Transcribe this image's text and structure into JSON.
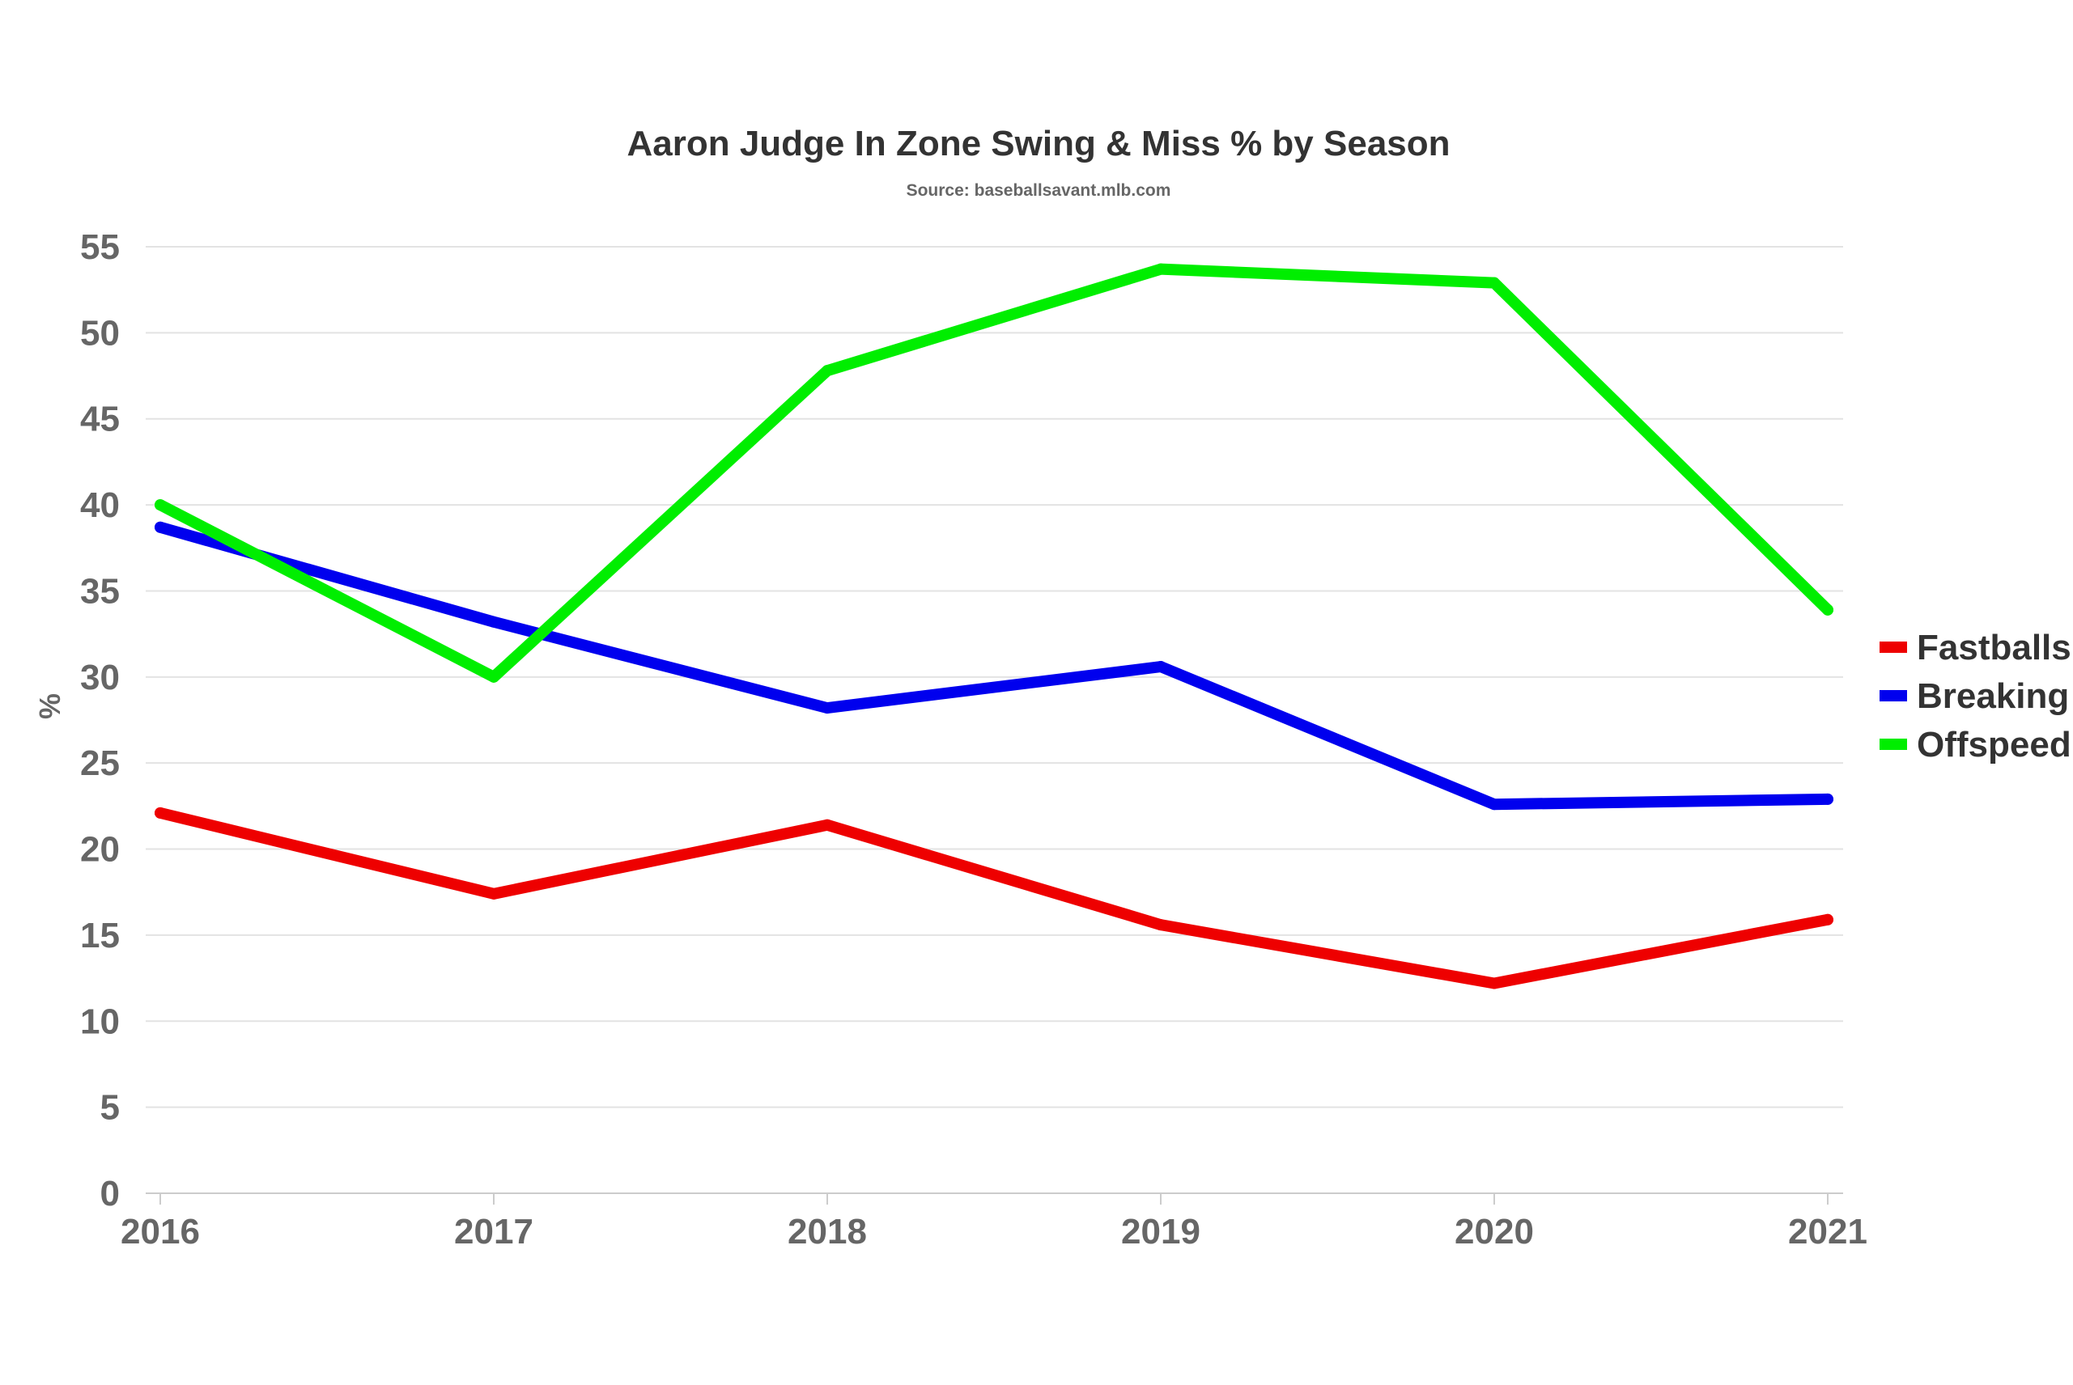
{
  "chart_data": {
    "type": "line",
    "title": "Aaron Judge In Zone Swing & Miss % by Season",
    "subtitle": "Source: baseballsavant.mlb.com",
    "xlabel": "",
    "ylabel": "%",
    "categories": [
      "2016",
      "2017",
      "2018",
      "2019",
      "2020",
      "2021"
    ],
    "ylim": [
      0,
      55
    ],
    "yticks": [
      0,
      5,
      10,
      15,
      20,
      25,
      30,
      35,
      40,
      45,
      50,
      55
    ],
    "grid": true,
    "legend_position": "right",
    "series": [
      {
        "name": "Fastballs",
        "color": "#ee0000",
        "values": [
          22.1,
          17.4,
          21.4,
          15.6,
          12.2,
          15.9
        ]
      },
      {
        "name": "Breaking",
        "color": "#0000ee",
        "values": [
          38.7,
          33.2,
          28.2,
          30.6,
          22.6,
          22.9
        ]
      },
      {
        "name": "Offspeed",
        "color": "#00ee00",
        "values": [
          40.0,
          30.0,
          47.8,
          53.7,
          52.9,
          33.9
        ]
      }
    ]
  }
}
